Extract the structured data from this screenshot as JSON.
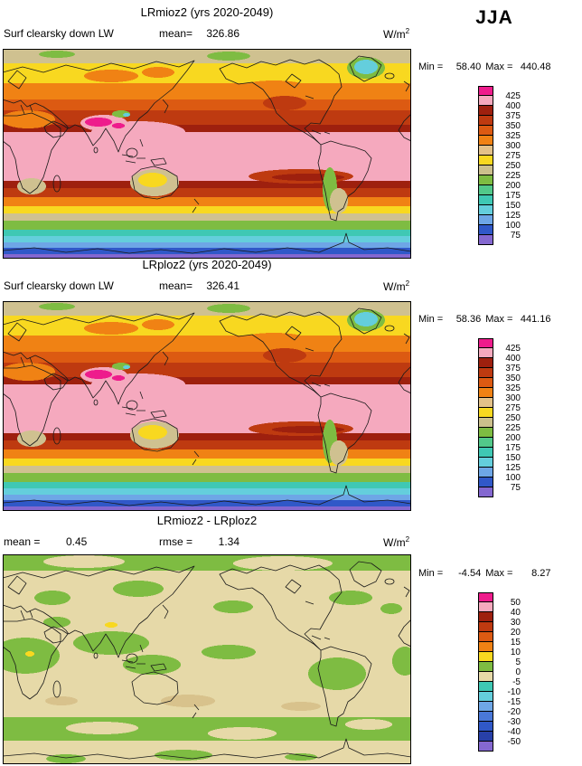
{
  "season_label": "JJA",
  "panels": {
    "p1": {
      "title": "LRmioz2 (yrs 2020-2049)",
      "var_label": "Surf clearsky down LW",
      "mean_label": "mean=",
      "mean_value": "326.86",
      "units_base": "W/m",
      "units_exp": "2",
      "min_label": "Min =",
      "min_value": "58.40",
      "max_label": "Max =",
      "max_value": "440.48"
    },
    "p2": {
      "title": "LRploz2 (yrs 2020-2049)",
      "var_label": "Surf clearsky down LW",
      "mean_label": "mean=",
      "mean_value": "326.41",
      "units_base": "W/m",
      "units_exp": "2",
      "min_label": "Min =",
      "min_value": "58.36",
      "max_label": "Max =",
      "max_value": "441.16"
    },
    "p3": {
      "title": "LRmioz2 - LRploz2",
      "mean_label": "mean =",
      "mean_value": "0.45",
      "rmse_label": "rmse =",
      "rmse_value": "1.34",
      "units_base": "W/m",
      "units_exp": "2",
      "min_label": "Min =",
      "min_value": "-4.54",
      "max_label": "Max =",
      "max_value": "8.27"
    }
  },
  "colorbars": {
    "lw": {
      "levels": [
        "425",
        "400",
        "375",
        "350",
        "325",
        "300",
        "275",
        "250",
        "225",
        "200",
        "175",
        "150",
        "125",
        "100",
        "75"
      ],
      "colors": [
        "#EE1C8C",
        "#F5A9BE",
        "#9E200E",
        "#BE3A10",
        "#DC5A12",
        "#F08214",
        "#E3C188",
        "#F8D820",
        "#CCC08C",
        "#7EBC42",
        "#52C88A",
        "#3FC8B4",
        "#64CEDC",
        "#6EA6E6",
        "#3058C8",
        "#8468D0"
      ]
    },
    "diff": {
      "levels": [
        "50",
        "40",
        "30",
        "20",
        "15",
        "10",
        "5",
        "0",
        "-5",
        "-10",
        "-15",
        "-20",
        "-30",
        "-40",
        "-50"
      ],
      "colors": [
        "#EE1C8C",
        "#F5A9BE",
        "#9E200E",
        "#BE3A10",
        "#DC5A12",
        "#F08214",
        "#F8D820",
        "#7EBC42",
        "#E6D9A8",
        "#3FC8B4",
        "#64CEDC",
        "#6EA6E6",
        "#4A78D8",
        "#3058C8",
        "#2840A8",
        "#8468D0"
      ]
    }
  },
  "chart_data": [
    {
      "type": "heatmap",
      "title": "LRmioz2 (yrs 2020-2049)",
      "subtitle": "Surf clearsky down LW",
      "season": "JJA",
      "units": "W/m2",
      "mean": 326.86,
      "min": 58.4,
      "max": 440.48,
      "contour_levels": [
        75,
        100,
        125,
        150,
        175,
        200,
        225,
        250,
        275,
        300,
        325,
        350,
        375,
        400,
        425
      ],
      "legend_position": "right",
      "description": "Global lat-lon filled contour map (0-360E, 90N-90S). Tropics pink (400-425 W/m2) with magenta maximum >425 over northern India; values decrease poleward through red, orange, yellow, tan, green, teal and blue; lowest values (<75, purple-blue) over Antarctica; cyan cold spot over Greenland."
    },
    {
      "type": "heatmap",
      "title": "LRploz2 (yrs 2020-2049)",
      "subtitle": "Surf clearsky down LW",
      "season": "JJA",
      "units": "W/m2",
      "mean": 326.41,
      "min": 58.36,
      "max": 441.16,
      "contour_levels": [
        75,
        100,
        125,
        150,
        175,
        200,
        225,
        250,
        275,
        300,
        325,
        350,
        375,
        400,
        425
      ],
      "legend_position": "right",
      "description": "Nearly identical spatial pattern to the LRmioz2 panel."
    },
    {
      "type": "heatmap",
      "title": "LRmioz2 - LRploz2",
      "season": "JJA",
      "units": "W/m2",
      "mean": 0.45,
      "rmse": 1.34,
      "min": -4.54,
      "max": 8.27,
      "contour_levels": [
        -50,
        -40,
        -30,
        -20,
        -15,
        -10,
        -5,
        0,
        5,
        10,
        15,
        20,
        30,
        40,
        50
      ],
      "legend_position": "right",
      "description": "Difference map dominated by small positive values (0 to 5, green) and small negative values (-5 to 0, beige); no large differences anywhere."
    }
  ]
}
